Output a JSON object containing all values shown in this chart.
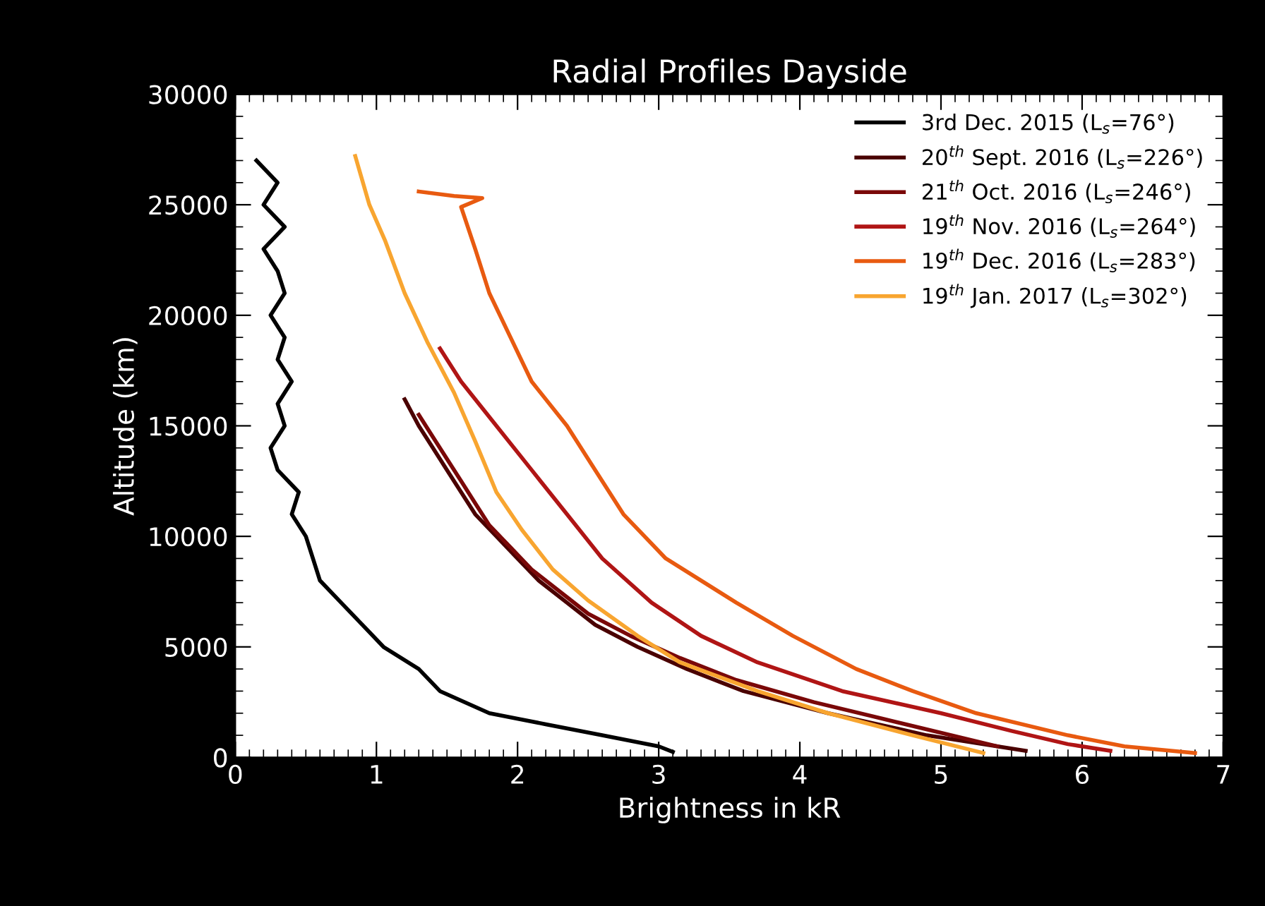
{
  "chart_data": {
    "type": "line",
    "title": "Radial Profiles Dayside",
    "xlabel": "Brightness in kR",
    "ylabel": "Altitude (km)",
    "xlim": [
      0,
      7
    ],
    "xticks": [
      0,
      1,
      2,
      3,
      4,
      5,
      6,
      7
    ],
    "ylim": [
      0,
      30000
    ],
    "yticks": [
      0,
      5000,
      10000,
      15000,
      20000,
      25000,
      30000
    ],
    "grid": false,
    "legend": "top right",
    "marker": "none",
    "line_style": "solid",
    "series": [
      {
        "name": "3rd Dec. 2015 (L$_{s}$=76°)",
        "color": "#000000",
        "x": [
          0.15,
          0.3,
          0.2,
          0.35,
          0.2,
          0.3,
          0.35,
          0.25,
          0.35,
          0.3,
          0.4,
          0.3,
          0.35,
          0.25,
          0.3,
          0.45,
          0.4,
          0.5,
          0.55,
          0.6,
          0.75,
          0.9,
          1.05,
          1.3,
          1.45,
          1.8,
          2.2,
          2.6,
          3.0,
          3.1
        ],
        "values": [
          27000,
          26000,
          25000,
          24000,
          23000,
          22000,
          21000,
          20000,
          19000,
          18000,
          17000,
          16000,
          15000,
          14000,
          13000,
          12000,
          11000,
          10000,
          9000,
          8000,
          7000,
          6000,
          5000,
          4000,
          3000,
          2000,
          1500,
          1000,
          500,
          250
        ]
      },
      {
        "name": "20$^{th}$ Sept. 2016 (L$_{s}$=226°)",
        "color": "#4a0000",
        "x": [
          1.2,
          1.3,
          1.4,
          1.5,
          1.6,
          1.7,
          1.85,
          2.0,
          2.15,
          2.35,
          2.55,
          2.85,
          3.2,
          3.6,
          4.2,
          4.9,
          5.6
        ],
        "values": [
          16200,
          15000,
          14000,
          13000,
          12000,
          11000,
          10000,
          9000,
          8000,
          7000,
          6000,
          5000,
          4000,
          3000,
          2000,
          1000,
          300
        ]
      },
      {
        "name": "21$^{th}$ Oct. 2016 (L$_{s}$=246°)",
        "color": "#7a0808",
        "x": [
          1.3,
          1.4,
          1.5,
          1.6,
          1.7,
          1.8,
          1.95,
          2.1,
          2.3,
          2.5,
          2.8,
          3.15,
          3.55,
          4.1,
          4.75,
          5.4
        ],
        "values": [
          15500,
          14500,
          13500,
          12500,
          11500,
          10500,
          9500,
          8500,
          7500,
          6500,
          5500,
          4500,
          3500,
          2500,
          1500,
          500
        ]
      },
      {
        "name": "19$^{th}$ Nov. 2016 (L$_{s}$=264°)",
        "color": "#b01515",
        "x": [
          1.45,
          1.6,
          1.85,
          2.1,
          2.35,
          2.6,
          2.95,
          3.3,
          3.7,
          4.3,
          5.0,
          5.5,
          5.9,
          6.2
        ],
        "values": [
          18500,
          17000,
          15000,
          13000,
          11000,
          9000,
          7000,
          5500,
          4300,
          3000,
          2000,
          1200,
          600,
          300
        ]
      },
      {
        "name": "19$^{th}$ Dec. 2016 (L$_{s}$=283°)",
        "color": "#e85a10",
        "x": [
          1.3,
          1.55,
          1.75,
          1.6,
          1.7,
          1.8,
          1.95,
          2.1,
          2.35,
          2.55,
          2.75,
          3.05,
          3.55,
          3.95,
          4.4,
          4.8,
          5.25,
          5.9,
          6.3,
          6.8
        ],
        "values": [
          25600,
          25400,
          25300,
          24900,
          23000,
          21000,
          19000,
          17000,
          15000,
          13000,
          11000,
          9000,
          7000,
          5500,
          4000,
          3000,
          2000,
          1000,
          500,
          200
        ]
      },
      {
        "name": "19$^{th}$ Jan. 2017 (L$_{s}$=302°)",
        "color": "#f8a530",
        "x": [
          0.85,
          0.95,
          1.06,
          1.2,
          1.36,
          1.55,
          1.7,
          1.85,
          2.03,
          2.25,
          2.5,
          2.85,
          3.15,
          3.7,
          4.2,
          4.8,
          5.3
        ],
        "values": [
          27200,
          25000,
          23400,
          21000,
          18800,
          16500,
          14300,
          12000,
          10300,
          8500,
          7100,
          5500,
          4300,
          3000,
          2000,
          1000,
          200
        ]
      }
    ]
  }
}
